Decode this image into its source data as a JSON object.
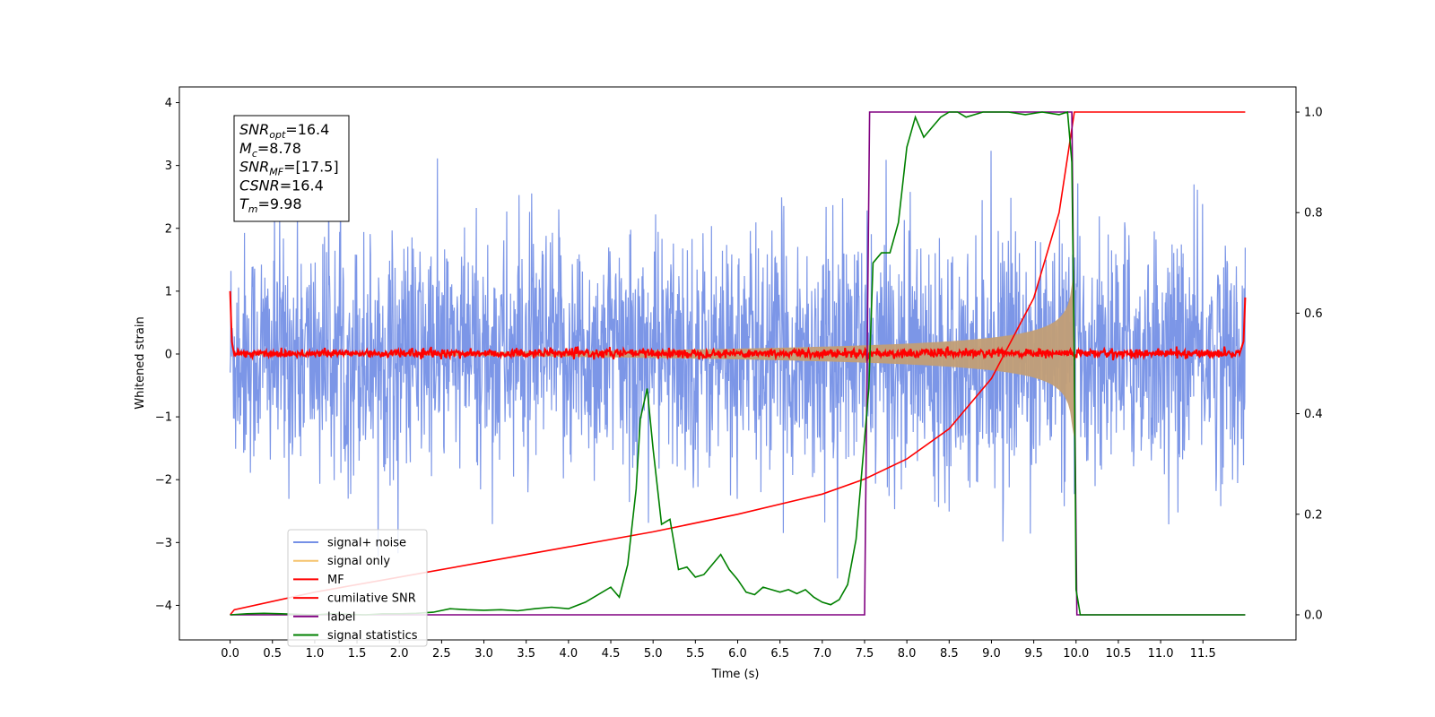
{
  "chart_data": {
    "type": "line",
    "xlabel": "Time (s)",
    "ylabel": "Whitened strain",
    "xlim": [
      -0.6,
      12.6
    ],
    "ylim": [
      -4.55,
      4.25
    ],
    "ylim_right": [
      -0.05,
      1.05
    ],
    "xticks": [
      "0.0",
      "0.5",
      "1.0",
      "1.5",
      "2.0",
      "2.5",
      "3.0",
      "3.5",
      "4.0",
      "4.5",
      "5.0",
      "5.5",
      "6.0",
      "6.5",
      "7.0",
      "7.5",
      "8.0",
      "8.5",
      "9.0",
      "9.5",
      "10.0",
      "10.5",
      "11.0",
      "11.5"
    ],
    "yticks_left": [
      "4",
      "3",
      "2",
      "1",
      "0",
      "−1",
      "−2",
      "−3",
      "−4"
    ],
    "yticks_right": [
      "1.0",
      "0.8",
      "0.6",
      "0.4",
      "0.2",
      "0.0"
    ],
    "grid": false,
    "legend_position": "lower-left",
    "annotation": {
      "lines": [
        {
          "base": "SNR",
          "sub": "opt",
          "value": "=16.4"
        },
        {
          "base": "M",
          "sub": "c",
          "value": "=8.78"
        },
        {
          "base": "SNR",
          "sub": "MF",
          "value": "=[17.5]"
        },
        {
          "base": "CSNR",
          "sub": "",
          "value": "=16.4"
        },
        {
          "base": "T",
          "sub": "m",
          "value": "=9.98"
        }
      ]
    },
    "series": [
      {
        "name": "signal+ noise",
        "color": "#7590e6",
        "axis": "left",
        "kind": "noise",
        "t_range": [
          0,
          12
        ],
        "amplitude": 3.9,
        "envelope": "uniform"
      },
      {
        "name": "signal only",
        "color": "#f5c46e",
        "fill_color": "#c29e76",
        "axis": "left",
        "kind": "chirp",
        "merger_time": 9.98,
        "peak_amplitude": 1.35
      },
      {
        "name": "MF",
        "color": "#ff0000",
        "axis": "left",
        "kind": "noise",
        "t_range": [
          0,
          12
        ],
        "amplitude": 0.12,
        "edge_values": {
          "start": 1.0,
          "end": 0.9
        }
      },
      {
        "name": "cumilative SNR",
        "color": "#ff0000",
        "axis": "right",
        "t": [
          0,
          0.05,
          1,
          2,
          3,
          4,
          5,
          6,
          7,
          7.5,
          8,
          8.5,
          9,
          9.5,
          9.8,
          9.98,
          10.0,
          12
        ],
        "y": [
          0.0,
          0.01,
          0.045,
          0.075,
          0.105,
          0.135,
          0.165,
          0.2,
          0.24,
          0.27,
          0.31,
          0.37,
          0.47,
          0.63,
          0.8,
          1.0,
          1.0,
          1.0
        ]
      },
      {
        "name": "label",
        "color": "#800080",
        "axis": "right",
        "t": [
          0,
          7.5,
          7.56,
          9.95,
          10.01,
          12
        ],
        "y": [
          0,
          0,
          1,
          1,
          0,
          0
        ]
      },
      {
        "name": "signal statistics",
        "color": "#008000",
        "axis": "right",
        "t": [
          0,
          0.2,
          0.4,
          0.6,
          0.8,
          1.0,
          1.2,
          1.4,
          1.6,
          1.8,
          2.0,
          2.2,
          2.4,
          2.6,
          2.8,
          3.0,
          3.2,
          3.4,
          3.6,
          3.8,
          4.0,
          4.2,
          4.4,
          4.5,
          4.6,
          4.7,
          4.8,
          4.85,
          4.93,
          5.0,
          5.1,
          5.2,
          5.3,
          5.4,
          5.5,
          5.6,
          5.7,
          5.8,
          5.9,
          6.0,
          6.1,
          6.2,
          6.3,
          6.4,
          6.5,
          6.6,
          6.7,
          6.8,
          6.9,
          7.0,
          7.1,
          7.2,
          7.3,
          7.4,
          7.5,
          7.55,
          7.6,
          7.7,
          7.8,
          7.9,
          8.0,
          8.1,
          8.2,
          8.3,
          8.4,
          8.5,
          8.6,
          8.7,
          8.8,
          8.9,
          9.0,
          9.2,
          9.4,
          9.6,
          9.8,
          9.9,
          9.95,
          9.98,
          10.0,
          10.05,
          12
        ],
        "y": [
          0.0,
          0.002,
          0.003,
          0.002,
          0.001,
          0.0,
          0.002,
          0.001,
          0.0,
          0.002,
          0.002,
          0.003,
          0.005,
          0.012,
          0.01,
          0.009,
          0.01,
          0.008,
          0.012,
          0.015,
          0.012,
          0.025,
          0.045,
          0.055,
          0.035,
          0.1,
          0.25,
          0.39,
          0.45,
          0.33,
          0.18,
          0.19,
          0.09,
          0.095,
          0.075,
          0.08,
          0.1,
          0.12,
          0.09,
          0.07,
          0.045,
          0.04,
          0.055,
          0.05,
          0.045,
          0.05,
          0.042,
          0.05,
          0.035,
          0.025,
          0.02,
          0.03,
          0.06,
          0.15,
          0.35,
          0.45,
          0.7,
          0.72,
          0.72,
          0.78,
          0.93,
          0.99,
          0.95,
          0.97,
          0.99,
          1.0,
          1.0,
          0.99,
          0.995,
          1.0,
          1.0,
          1.0,
          0.995,
          1.0,
          0.995,
          1.0,
          0.9,
          0.5,
          0.05,
          0.0,
          0.0
        ]
      }
    ]
  }
}
